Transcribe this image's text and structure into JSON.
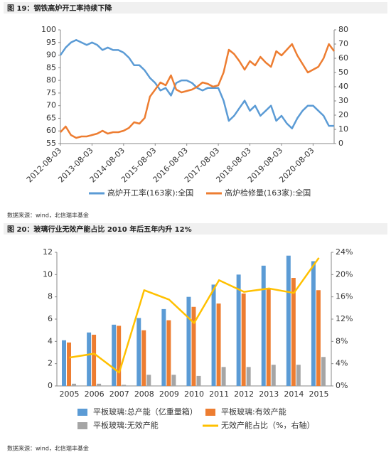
{
  "captions": [
    "图 19：钢铁高炉开工率持续下降",
    "图 20：玻璃行业无效产能占比 2010 年后五年内升 12%"
  ],
  "sources": [
    "数据来源：wind，北信瑞丰基金",
    "数据来源：wind，北信瑞丰基金"
  ],
  "chart_data": [
    {
      "type": "line",
      "categories": [
        "2012-08-03",
        null,
        null,
        null,
        null,
        null,
        "2013-08-03",
        null,
        null,
        null,
        null,
        null,
        "2014-08-03",
        null,
        null,
        null,
        null,
        null,
        "2015-08-03",
        null,
        null,
        null,
        null,
        null,
        "2016-08-03",
        null,
        null,
        null,
        null,
        null,
        "2017-08-03",
        null,
        null,
        null,
        null,
        null,
        "2018-08-03",
        null,
        null,
        null,
        null,
        null,
        "2019-08-03",
        null,
        null,
        null,
        null,
        null,
        "2020-08-03",
        null,
        null,
        null,
        null
      ],
      "series": [
        {
          "name": "高炉开工率(163家):全国",
          "color": "#5b9bd5",
          "values": [
            90,
            93,
            95,
            96,
            95,
            94,
            95,
            94,
            92,
            93,
            92,
            92,
            91,
            89,
            86,
            86,
            84,
            81,
            79,
            76,
            77,
            74,
            79,
            80,
            80,
            79,
            77,
            76,
            77,
            77,
            77,
            72,
            64,
            66,
            69,
            72,
            68,
            70,
            66,
            68,
            70,
            64,
            66,
            63,
            61,
            65,
            68,
            70,
            70,
            68,
            66,
            62,
            62
          ]
        },
        {
          "name": "高炉检修量(163家):全国",
          "color": "#ed7d31",
          "axis": "y2",
          "values": [
            8,
            12,
            6,
            4,
            5,
            5,
            6,
            7,
            9,
            7,
            8,
            8,
            9,
            11,
            15,
            14,
            18,
            33,
            38,
            43,
            41,
            48,
            38,
            36,
            37,
            38,
            40,
            43,
            42,
            40,
            41,
            50,
            66,
            63,
            58,
            52,
            58,
            55,
            61,
            57,
            54,
            65,
            62,
            66,
            70,
            62,
            56,
            50,
            52,
            54,
            60,
            70,
            65
          ]
        }
      ],
      "ylim": [
        55,
        100
      ],
      "yticks": [
        55,
        60,
        65,
        70,
        75,
        80,
        85,
        90,
        95,
        100
      ],
      "y2lim": [
        0,
        80
      ],
      "y2ticks": [
        0,
        10,
        20,
        30,
        40,
        50,
        60,
        70,
        80
      ]
    },
    {
      "type": "bar",
      "categories": [
        "2005",
        "2006",
        "2007",
        "2008",
        "2009",
        "2010",
        "2011",
        "2012",
        "2013",
        "2014",
        "2015"
      ],
      "series": [
        {
          "name": "平板玻璃:总产能（亿重量箱）",
          "color": "#5b9bd5",
          "values": [
            4.1,
            4.8,
            5.5,
            6.1,
            6.9,
            8.0,
            9.1,
            10.0,
            10.8,
            11.7,
            11.2
          ]
        },
        {
          "name": "平板玻璃:有效产能",
          "color": "#ed7d31",
          "values": [
            3.9,
            4.6,
            5.4,
            5.0,
            5.9,
            7.1,
            7.4,
            8.3,
            8.7,
            9.7,
            8.6
          ]
        },
        {
          "name": "平板玻璃:无效产能",
          "color": "#a5a5a5",
          "values": [
            0.2,
            0.2,
            0.1,
            1.0,
            1.0,
            0.9,
            1.7,
            1.7,
            1.9,
            1.9,
            2.6
          ]
        },
        {
          "name": "无效产能占比（%，右轴）",
          "color": "#ffc000",
          "type": "line",
          "axis": "y2",
          "values": [
            5.1,
            5.8,
            2.4,
            17.2,
            15.5,
            11.3,
            19.0,
            16.9,
            17.5,
            16.7,
            23.0
          ]
        }
      ],
      "ylim": [
        0,
        12
      ],
      "yticks": [
        0,
        2,
        4,
        6,
        8,
        10,
        12
      ],
      "y2lim": [
        0,
        24
      ],
      "y2ticks": [
        {
          "value": 0,
          "label": "0%"
        },
        {
          "value": 4,
          "label": "4%"
        },
        {
          "value": 8,
          "label": "8%"
        },
        {
          "value": 12,
          "label": "12%"
        },
        {
          "value": 16,
          "label": "16%"
        },
        {
          "value": 20,
          "label": "20%"
        },
        {
          "value": 24,
          "label": "24%"
        }
      ]
    }
  ]
}
